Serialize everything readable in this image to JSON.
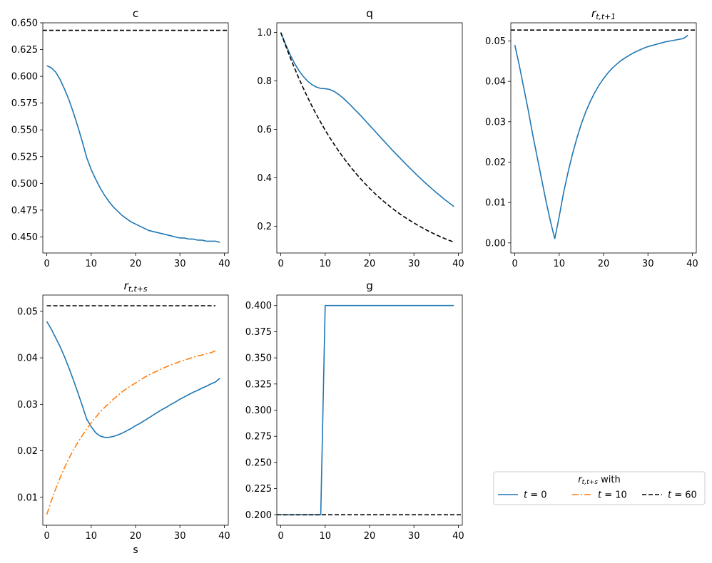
{
  "chart_data": [
    {
      "type": "line",
      "title": "c",
      "xlabel": "",
      "ylabel": "",
      "xlim": [
        0,
        40
      ],
      "ylim": [
        0.435,
        0.65
      ],
      "x_ticks": [
        0,
        10,
        20,
        30,
        40
      ],
      "y_ticks": [
        0.45,
        0.475,
        0.5,
        0.525,
        0.55,
        0.575,
        0.6,
        0.625,
        0.65
      ],
      "y_tick_labels": [
        "0.450",
        "0.475",
        "0.500",
        "0.525",
        "0.550",
        "0.575",
        "0.600",
        "0.625",
        "0.650"
      ],
      "series": [
        {
          "color": "#1f77b4",
          "style": "solid",
          "x": [
            0,
            1,
            2,
            3,
            4,
            5,
            6,
            7,
            8,
            9,
            10,
            11,
            12,
            13,
            14,
            15,
            16,
            17,
            18,
            19,
            20,
            21,
            22,
            23,
            24,
            25,
            26,
            27,
            28,
            29,
            30,
            31,
            32,
            33,
            34,
            35,
            36,
            37,
            38,
            39
          ],
          "y": [
            0.61,
            0.608,
            0.604,
            0.597,
            0.588,
            0.578,
            0.566,
            0.553,
            0.539,
            0.524,
            0.513,
            0.504,
            0.496,
            0.489,
            0.483,
            0.478,
            0.474,
            0.47,
            0.467,
            0.464,
            0.462,
            0.46,
            0.458,
            0.456,
            0.455,
            0.454,
            0.453,
            0.452,
            0.451,
            0.45,
            0.449,
            0.449,
            0.448,
            0.448,
            0.447,
            0.447,
            0.446,
            0.446,
            0.446,
            0.445
          ]
        },
        {
          "color": "#000000",
          "style": "dashed",
          "hline": true,
          "y": 0.643
        }
      ]
    },
    {
      "type": "line",
      "title": "q",
      "xlabel": "",
      "ylabel": "",
      "xlim": [
        0,
        40
      ],
      "ylim": [
        0.09,
        1.04
      ],
      "x_ticks": [
        0,
        10,
        20,
        30,
        40
      ],
      "y_ticks": [
        0.2,
        0.4,
        0.6,
        0.8,
        1.0
      ],
      "y_tick_labels": [
        "0.2",
        "0.4",
        "0.6",
        "0.8",
        "1.0"
      ],
      "series": [
        {
          "color": "#1f77b4",
          "style": "solid",
          "x": [
            0,
            1,
            2,
            3,
            4,
            5,
            6,
            7,
            8,
            9,
            10,
            11,
            12,
            13,
            14,
            15,
            16,
            17,
            18,
            19,
            20,
            21,
            22,
            23,
            24,
            25,
            26,
            27,
            28,
            29,
            30,
            31,
            32,
            33,
            34,
            35,
            36,
            37,
            38,
            39
          ],
          "y": [
            1.0,
            0.955,
            0.913,
            0.876,
            0.845,
            0.82,
            0.8,
            0.785,
            0.775,
            0.769,
            0.768,
            0.765,
            0.757,
            0.745,
            0.73,
            0.713,
            0.695,
            0.676,
            0.657,
            0.637,
            0.617,
            0.597,
            0.577,
            0.557,
            0.537,
            0.517,
            0.498,
            0.479,
            0.46,
            0.442,
            0.424,
            0.406,
            0.389,
            0.372,
            0.356,
            0.34,
            0.325,
            0.31,
            0.296,
            0.282
          ]
        },
        {
          "color": "#000000",
          "style": "dashed",
          "x": [
            0,
            1,
            2,
            3,
            4,
            5,
            6,
            7,
            8,
            9,
            10,
            11,
            12,
            13,
            14,
            15,
            16,
            17,
            18,
            19,
            20,
            21,
            22,
            23,
            24,
            25,
            26,
            27,
            28,
            29,
            30,
            31,
            32,
            33,
            34,
            35,
            36,
            37,
            38,
            39
          ],
          "y": [
            1.0,
            0.95,
            0.902,
            0.857,
            0.814,
            0.773,
            0.734,
            0.697,
            0.662,
            0.629,
            0.597,
            0.567,
            0.539,
            0.512,
            0.486,
            0.462,
            0.439,
            0.417,
            0.396,
            0.376,
            0.357,
            0.339,
            0.322,
            0.306,
            0.291,
            0.276,
            0.262,
            0.249,
            0.237,
            0.225,
            0.214,
            0.203,
            0.193,
            0.183,
            0.174,
            0.165,
            0.157,
            0.149,
            0.142,
            0.135
          ]
        }
      ]
    },
    {
      "type": "line",
      "title": "r_{t,t+1}",
      "xlabel": "",
      "ylabel": "",
      "xlim": [
        0,
        40
      ],
      "ylim": [
        -0.0025,
        0.0545
      ],
      "x_ticks": [
        0,
        10,
        20,
        30,
        40
      ],
      "y_ticks": [
        0.0,
        0.01,
        0.02,
        0.03,
        0.04,
        0.05
      ],
      "y_tick_labels": [
        "0.00",
        "0.01",
        "0.02",
        "0.03",
        "0.04",
        "0.05"
      ],
      "series": [
        {
          "color": "#1f77b4",
          "style": "solid",
          "x": [
            0,
            1,
            2,
            3,
            4,
            5,
            6,
            7,
            8,
            9,
            10,
            11,
            12,
            13,
            14,
            15,
            16,
            17,
            18,
            19,
            20,
            21,
            22,
            23,
            24,
            25,
            26,
            27,
            28,
            29,
            30,
            31,
            32,
            33,
            34,
            35,
            36,
            37,
            38,
            39
          ],
          "y": [
            0.049,
            0.044,
            0.0385,
            0.033,
            0.027,
            0.0215,
            0.016,
            0.0105,
            0.0055,
            0.001,
            0.0065,
            0.0125,
            0.0175,
            0.022,
            0.026,
            0.0295,
            0.0325,
            0.035,
            0.0372,
            0.0391,
            0.0407,
            0.0421,
            0.0433,
            0.0443,
            0.0452,
            0.0459,
            0.0466,
            0.0472,
            0.0477,
            0.0482,
            0.0486,
            0.0489,
            0.0492,
            0.0495,
            0.0498,
            0.05,
            0.0502,
            0.0504,
            0.0506,
            0.0514
          ]
        },
        {
          "color": "#000000",
          "style": "dashed",
          "hline": true,
          "y": 0.0527
        }
      ]
    },
    {
      "type": "line",
      "title": "r_{t,t+s}",
      "xlabel": "s",
      "ylabel": "",
      "xlim": [
        0,
        40
      ],
      "ylim": [
        0.004,
        0.0535
      ],
      "x_ticks": [
        0,
        10,
        20,
        30,
        40
      ],
      "y_ticks": [
        0.01,
        0.02,
        0.03,
        0.04,
        0.05
      ],
      "y_tick_labels": [
        "0.01",
        "0.02",
        "0.03",
        "0.04",
        "0.05"
      ],
      "series": [
        {
          "name": "t=0",
          "color": "#1f77b4",
          "style": "solid",
          "x": [
            0,
            1,
            2,
            3,
            4,
            5,
            6,
            7,
            8,
            9,
            10,
            11,
            12,
            13,
            14,
            15,
            16,
            17,
            18,
            19,
            20,
            21,
            22,
            23,
            24,
            25,
            26,
            27,
            28,
            29,
            30,
            31,
            32,
            33,
            34,
            35,
            36,
            37,
            38,
            39
          ],
          "y": [
            0.0478,
            0.0462,
            0.0443,
            0.0424,
            0.0402,
            0.0378,
            0.0352,
            0.0325,
            0.0297,
            0.0268,
            0.0252,
            0.0239,
            0.0232,
            0.0229,
            0.0229,
            0.0231,
            0.0234,
            0.0238,
            0.0243,
            0.0248,
            0.0254,
            0.0259,
            0.0265,
            0.0271,
            0.0277,
            0.0283,
            0.0289,
            0.0294,
            0.03,
            0.0305,
            0.0311,
            0.0316,
            0.0321,
            0.0326,
            0.033,
            0.0335,
            0.0339,
            0.0344,
            0.0348,
            0.0356
          ]
        },
        {
          "name": "t=10",
          "color": "#ff7f0e",
          "style": "dashdot",
          "x": [
            0,
            1,
            2,
            3,
            4,
            5,
            6,
            7,
            8,
            9,
            10,
            11,
            12,
            13,
            14,
            15,
            16,
            17,
            18,
            19,
            20,
            21,
            22,
            23,
            24,
            25,
            26,
            27,
            28,
            29,
            30,
            31,
            32,
            33,
            34,
            35,
            36,
            37,
            38
          ],
          "y": [
            0.0063,
            0.0092,
            0.0118,
            0.0142,
            0.0164,
            0.0184,
            0.0202,
            0.0218,
            0.0233,
            0.0247,
            0.026,
            0.0272,
            0.0283,
            0.0293,
            0.0302,
            0.0311,
            0.0319,
            0.0327,
            0.0334,
            0.034,
            0.0346,
            0.0352,
            0.0358,
            0.0363,
            0.0368,
            0.0372,
            0.0377,
            0.0381,
            0.0385,
            0.0388,
            0.0392,
            0.0395,
            0.0398,
            0.0401,
            0.0404,
            0.0406,
            0.0409,
            0.0411,
            0.0415
          ]
        },
        {
          "name": "t=60",
          "color": "#000000",
          "style": "dashed",
          "x": [
            0,
            38
          ],
          "y": [
            0.0512,
            0.0512
          ]
        }
      ]
    },
    {
      "type": "line",
      "title": "g",
      "xlabel": "",
      "ylabel": "",
      "xlim": [
        0,
        40
      ],
      "ylim": [
        0.19,
        0.41
      ],
      "x_ticks": [
        0,
        10,
        20,
        30,
        40
      ],
      "y_ticks": [
        0.2,
        0.225,
        0.25,
        0.275,
        0.3,
        0.325,
        0.35,
        0.375,
        0.4
      ],
      "y_tick_labels": [
        "0.200",
        "0.225",
        "0.250",
        "0.275",
        "0.300",
        "0.325",
        "0.350",
        "0.375",
        "0.400"
      ],
      "series": [
        {
          "color": "#1f77b4",
          "style": "solid",
          "x": [
            0,
            9,
            10,
            39
          ],
          "y": [
            0.2,
            0.2,
            0.4,
            0.4
          ]
        },
        {
          "color": "#000000",
          "style": "dashed",
          "hline": true,
          "y": 0.2
        }
      ]
    }
  ],
  "legend": {
    "title": "r_{t,t+s} with",
    "entries": [
      {
        "label": "t=0",
        "color": "#1f77b4",
        "style": "solid"
      },
      {
        "label": "t=10",
        "color": "#ff7f0e",
        "style": "dashdot"
      },
      {
        "label": "t=60",
        "color": "#000000",
        "style": "dashed"
      }
    ]
  }
}
